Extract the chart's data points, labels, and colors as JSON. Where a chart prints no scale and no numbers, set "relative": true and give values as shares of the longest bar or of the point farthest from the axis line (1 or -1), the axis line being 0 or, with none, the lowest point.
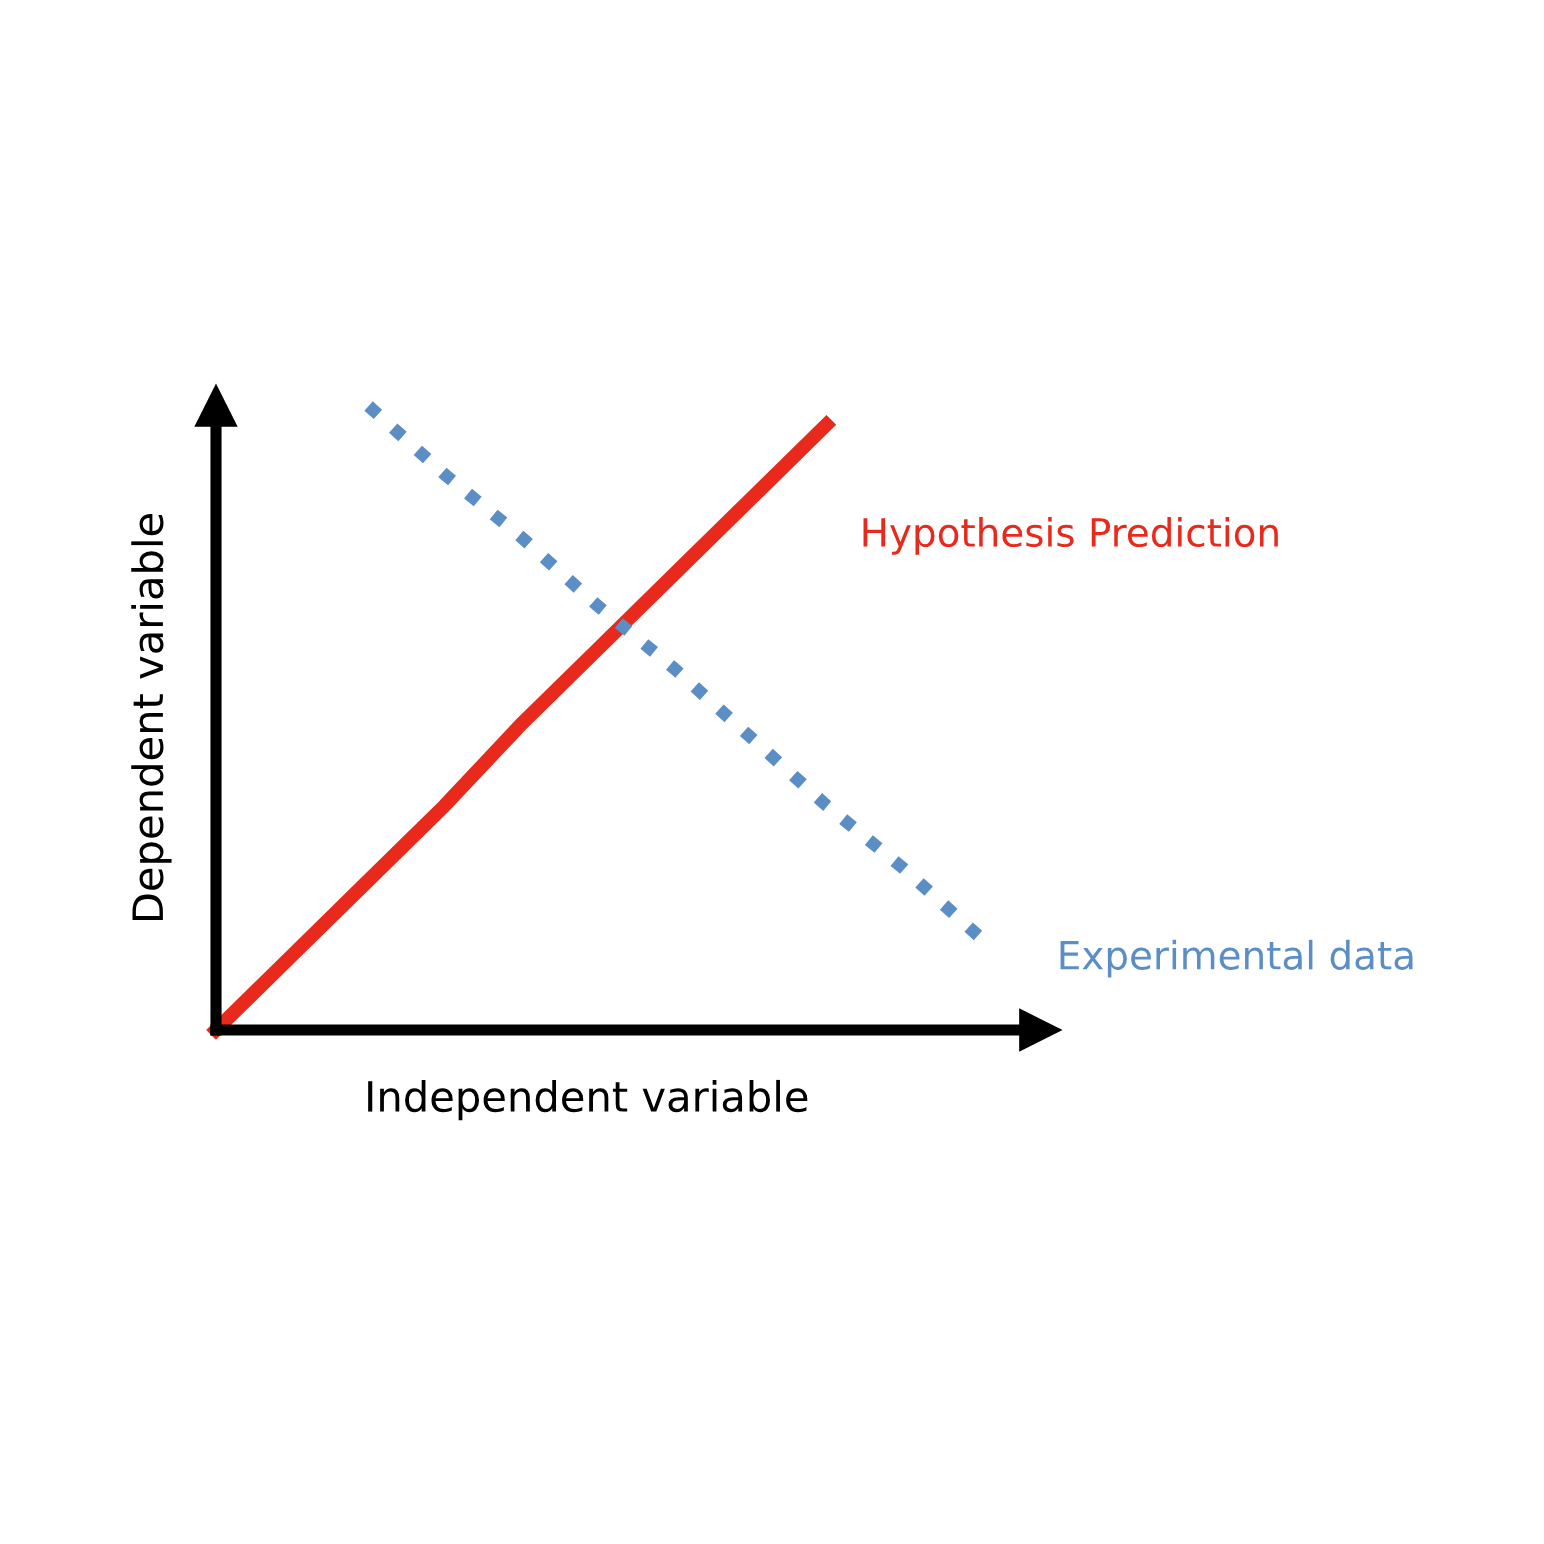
{
  "chart_data": {
    "type": "line",
    "relative": true,
    "xlabel": "Independent variable",
    "ylabel": "Dependent variable",
    "categories": [
      null,
      null,
      null,
      null,
      null,
      null,
      null,
      null,
      null,
      null,
      null
    ],
    "series": [
      {
        "name": "Hypothesis Prediction",
        "color": "#e8291c",
        "line_style": "solid",
        "values": [
          0,
          0.12,
          0.24,
          0.36,
          0.49,
          0.61,
          0.73,
          0.85,
          0.97,
          null,
          null
        ]
      },
      {
        "name": "Experimental data",
        "color": "#5b8ec4",
        "line_style": "dotted",
        "values": [
          null,
          null,
          1.0,
          0.89,
          0.79,
          0.68,
          0.58,
          0.47,
          0.36,
          0.26,
          0.15
        ]
      }
    ],
    "grid": false,
    "legend": false,
    "marker": "none"
  }
}
